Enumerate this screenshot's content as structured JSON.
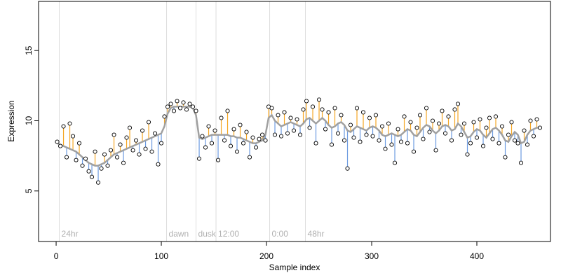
{
  "chart_data": {
    "type": "scatter",
    "x_label": "Sample index",
    "y_label": "Expression",
    "xlim": [
      -16.7,
      470
    ],
    "ylim": [
      1.4,
      18.5
    ],
    "xticks": [
      0,
      100,
      200,
      300,
      400
    ],
    "yticks": [
      5,
      10,
      15
    ],
    "up_color": "#f5a623",
    "down_color": "#6b9ae0",
    "vline_color": "#dddddd",
    "annotations": [
      {
        "x": 3,
        "label": "24hr"
      },
      {
        "x": 105,
        "label": "dawn"
      },
      {
        "x": 133,
        "label": "dusk"
      },
      {
        "x": 152,
        "label": "12:00"
      },
      {
        "x": 203,
        "label": "0:00"
      },
      {
        "x": 237,
        "label": "48hr"
      }
    ],
    "x": [
      1,
      4,
      7,
      10,
      13,
      16,
      19,
      22,
      25,
      28,
      31,
      34,
      37,
      40,
      43,
      46,
      49,
      52,
      55,
      58,
      61,
      64,
      67,
      70,
      73,
      76,
      79,
      82,
      85,
      88,
      91,
      94,
      97,
      100,
      103,
      106,
      109,
      112,
      115,
      118,
      121,
      124,
      127,
      130,
      133,
      136,
      139,
      142,
      145,
      148,
      151,
      154,
      157,
      160,
      163,
      166,
      169,
      172,
      175,
      178,
      181,
      184,
      187,
      190,
      193,
      196,
      199,
      202,
      205,
      208,
      211,
      214,
      217,
      220,
      223,
      226,
      229,
      232,
      235,
      238,
      241,
      244,
      247,
      250,
      253,
      256,
      259,
      262,
      265,
      268,
      271,
      274,
      277,
      280,
      283,
      286,
      289,
      292,
      295,
      298,
      301,
      304,
      307,
      310,
      313,
      316,
      319,
      322,
      325,
      328,
      331,
      334,
      337,
      340,
      343,
      346,
      349,
      352,
      355,
      358,
      361,
      364,
      367,
      370,
      373,
      376,
      379,
      382,
      385,
      388,
      391,
      394,
      397,
      400,
      403,
      406,
      409,
      412,
      415,
      418,
      421,
      424,
      427,
      430,
      433,
      436,
      439,
      442,
      445,
      448,
      451,
      454,
      457,
      460
    ],
    "series": [
      {
        "color": "#000000",
        "values": [
          8.5,
          8.2,
          9.6,
          7.4,
          9.8,
          8.9,
          7.2,
          8.4,
          6.8,
          7.3,
          6.4,
          6.0,
          7.8,
          5.6,
          6.6,
          7.6,
          6.8,
          7.9,
          9.0,
          7.4,
          8.3,
          7.0,
          8.8,
          9.5,
          7.9,
          8.6,
          7.6,
          9.3,
          8.0,
          9.9,
          7.8,
          9.1,
          6.9,
          8.4,
          10.3,
          11.0,
          11.2,
          10.7,
          11.4,
          10.9,
          11.3,
          10.8,
          11.2,
          11.0,
          10.7,
          7.3,
          8.9,
          8.1,
          9.6,
          8.4,
          9.3,
          7.2,
          10.2,
          8.6,
          10.7,
          8.2,
          9.4,
          7.8,
          9.7,
          8.4,
          9.2,
          7.4,
          8.8,
          8.1,
          8.7,
          9.0,
          8.6,
          11.0,
          10.9,
          9.0,
          10.4,
          8.9,
          10.6,
          9.1,
          10.2,
          9.3,
          10.1,
          9.0,
          10.8,
          11.4,
          9.5,
          11.0,
          8.4,
          11.5,
          10.8,
          9.4,
          10.6,
          8.3,
          10.9,
          9.1,
          10.4,
          8.6,
          6.6,
          9.7,
          8.8,
          10.9,
          8.5,
          10.6,
          9.0,
          10.2,
          8.9,
          10.4,
          8.6,
          9.6,
          8.0,
          9.8,
          8.3,
          7.0,
          9.4,
          8.5,
          10.3,
          8.4,
          9.9,
          7.8,
          9.5,
          10.4,
          8.7,
          10.9,
          9.2,
          10.0,
          7.9,
          9.8,
          10.7,
          9.1,
          10.3,
          8.6,
          10.8,
          11.2,
          9.0,
          9.8,
          7.6,
          8.4,
          9.9,
          8.8,
          10.1,
          8.2,
          9.5,
          10.2,
          8.7,
          10.3,
          8.4,
          9.6,
          7.4,
          9.0,
          9.9,
          8.6,
          8.4,
          7.0,
          9.3,
          8.3,
          10.0,
          8.9,
          10.1,
          9.5
        ]
      },
      {
        "color": "#a0a0a0",
        "values": [
          8.4,
          8.3,
          8.2,
          8.1,
          8.0,
          7.9,
          7.8,
          7.6,
          7.4,
          7.2,
          7.0,
          6.9,
          6.8,
          6.8,
          6.9,
          7.0,
          7.2,
          7.4,
          7.6,
          7.7,
          7.8,
          7.9,
          8.0,
          8.1,
          8.2,
          8.3,
          8.4,
          8.5,
          8.6,
          8.7,
          8.8,
          8.9,
          9.0,
          9.1,
          9.6,
          10.5,
          10.9,
          11.0,
          11.0,
          11.0,
          11.0,
          11.0,
          11.0,
          10.9,
          10.4,
          8.8,
          8.7,
          8.8,
          8.9,
          9.0,
          9.0,
          9.0,
          9.0,
          9.0,
          9.0,
          8.9,
          8.9,
          8.8,
          8.8,
          8.7,
          8.6,
          8.5,
          8.4,
          8.4,
          8.5,
          8.6,
          9.0,
          10.2,
          10.4,
          10.0,
          9.8,
          9.6,
          9.7,
          9.8,
          9.9,
          9.8,
          9.7,
          9.6,
          9.8,
          10.1,
          10.2,
          10.0,
          9.8,
          10.0,
          10.2,
          10.0,
          9.7,
          9.5,
          9.6,
          9.8,
          9.9,
          9.7,
          9.3,
          9.2,
          9.4,
          9.6,
          9.5,
          9.4,
          9.3,
          9.5,
          9.6,
          9.5,
          9.3,
          9.0,
          8.9,
          9.0,
          9.1,
          9.0,
          8.9,
          9.0,
          9.2,
          9.4,
          9.3,
          9.0,
          8.9,
          9.2,
          9.5,
          9.7,
          9.6,
          9.3,
          9.1,
          9.3,
          9.6,
          9.7,
          9.6,
          9.3,
          9.4,
          9.8,
          9.6,
          9.2,
          8.8,
          8.9,
          9.2,
          9.4,
          9.3,
          9.0,
          8.8,
          9.1,
          9.4,
          9.5,
          9.3,
          9.0,
          8.6,
          8.5,
          8.9,
          9.2,
          9.0,
          8.4,
          8.5,
          9.0,
          9.3,
          9.4,
          9.5,
          9.5
        ]
      }
    ]
  }
}
